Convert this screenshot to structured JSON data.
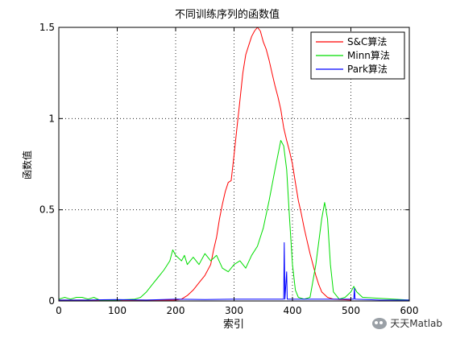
{
  "chart_data": {
    "type": "line",
    "title": "不同训练序列的函数值",
    "xlabel": "索引",
    "ylabel": "函数值",
    "xlim": [
      0,
      600
    ],
    "ylim": [
      0,
      1.5
    ],
    "xticks": [
      0,
      100,
      200,
      300,
      400,
      500,
      600
    ],
    "yticks": [
      0,
      0.5,
      1,
      1.5
    ],
    "ytick_labels": [
      "0",
      "0.5",
      "1",
      "1.5"
    ],
    "grid": true,
    "legend_position": "top-right",
    "series": [
      {
        "name": "S&C算法",
        "color": "#ff0000",
        "points": [
          [
            0,
            0.005
          ],
          [
            50,
            0.005
          ],
          [
            100,
            0.005
          ],
          [
            150,
            0.005
          ],
          [
            200,
            0.005
          ],
          [
            210,
            0.01
          ],
          [
            220,
            0.03
          ],
          [
            230,
            0.06
          ],
          [
            240,
            0.1
          ],
          [
            250,
            0.14
          ],
          [
            260,
            0.2
          ],
          [
            265,
            0.28
          ],
          [
            270,
            0.35
          ],
          [
            275,
            0.45
          ],
          [
            280,
            0.53
          ],
          [
            285,
            0.6
          ],
          [
            290,
            0.65
          ],
          [
            295,
            0.66
          ],
          [
            300,
            0.8
          ],
          [
            305,
            0.95
          ],
          [
            310,
            1.1
          ],
          [
            315,
            1.25
          ],
          [
            320,
            1.35
          ],
          [
            325,
            1.4
          ],
          [
            330,
            1.45
          ],
          [
            335,
            1.48
          ],
          [
            340,
            1.5
          ],
          [
            345,
            1.48
          ],
          [
            350,
            1.42
          ],
          [
            355,
            1.38
          ],
          [
            360,
            1.32
          ],
          [
            365,
            1.25
          ],
          [
            370,
            1.18
          ],
          [
            375,
            1.12
          ],
          [
            380,
            1.05
          ],
          [
            385,
            0.95
          ],
          [
            390,
            0.88
          ],
          [
            395,
            0.82
          ],
          [
            400,
            0.75
          ],
          [
            405,
            0.65
          ],
          [
            410,
            0.55
          ],
          [
            415,
            0.48
          ],
          [
            420,
            0.4
          ],
          [
            425,
            0.33
          ],
          [
            430,
            0.26
          ],
          [
            435,
            0.2
          ],
          [
            440,
            0.14
          ],
          [
            445,
            0.09
          ],
          [
            450,
            0.05
          ],
          [
            460,
            0.02
          ],
          [
            470,
            0.01
          ],
          [
            500,
            0.005
          ]
        ]
      },
      {
        "name": "Minn算法",
        "color": "#00dd00",
        "points": [
          [
            0,
            0.01
          ],
          [
            10,
            0.02
          ],
          [
            20,
            0.01
          ],
          [
            30,
            0.02
          ],
          [
            40,
            0.02
          ],
          [
            50,
            0.01
          ],
          [
            60,
            0.02
          ],
          [
            70,
            0.005
          ],
          [
            100,
            0.005
          ],
          [
            130,
            0.01
          ],
          [
            140,
            0.02
          ],
          [
            150,
            0.05
          ],
          [
            160,
            0.09
          ],
          [
            170,
            0.13
          ],
          [
            180,
            0.17
          ],
          [
            190,
            0.22
          ],
          [
            195,
            0.28
          ],
          [
            200,
            0.25
          ],
          [
            210,
            0.22
          ],
          [
            215,
            0.25
          ],
          [
            220,
            0.2
          ],
          [
            230,
            0.24
          ],
          [
            240,
            0.2
          ],
          [
            250,
            0.26
          ],
          [
            260,
            0.22
          ],
          [
            270,
            0.25
          ],
          [
            280,
            0.18
          ],
          [
            290,
            0.16
          ],
          [
            300,
            0.2
          ],
          [
            310,
            0.22
          ],
          [
            320,
            0.18
          ],
          [
            330,
            0.25
          ],
          [
            340,
            0.3
          ],
          [
            350,
            0.4
          ],
          [
            360,
            0.55
          ],
          [
            370,
            0.72
          ],
          [
            375,
            0.8
          ],
          [
            380,
            0.88
          ],
          [
            385,
            0.85
          ],
          [
            390,
            0.72
          ],
          [
            395,
            0.45
          ],
          [
            400,
            0.2
          ],
          [
            405,
            0.06
          ],
          [
            410,
            0.02
          ],
          [
            420,
            0.01
          ],
          [
            430,
            0.02
          ],
          [
            440,
            0.2
          ],
          [
            450,
            0.45
          ],
          [
            455,
            0.54
          ],
          [
            460,
            0.45
          ],
          [
            465,
            0.2
          ],
          [
            470,
            0.05
          ],
          [
            480,
            0.01
          ],
          [
            490,
            0.02
          ],
          [
            500,
            0.05
          ],
          [
            505,
            0.08
          ],
          [
            510,
            0.05
          ],
          [
            520,
            0.02
          ],
          [
            600,
            0.005
          ]
        ]
      },
      {
        "name": "Park算法",
        "color": "#0000ff",
        "points": [
          [
            0,
            0.005
          ],
          [
            50,
            0.005
          ],
          [
            100,
            0.008
          ],
          [
            150,
            0.005
          ],
          [
            200,
            0.01
          ],
          [
            250,
            0.008
          ],
          [
            300,
            0.01
          ],
          [
            350,
            0.01
          ],
          [
            385,
            0.01
          ],
          [
            386,
            0.32
          ],
          [
            387,
            0.01
          ],
          [
            390,
            0.16
          ],
          [
            391,
            0.01
          ],
          [
            420,
            0.01
          ],
          [
            450,
            0.01
          ],
          [
            505,
            0.01
          ],
          [
            506,
            0.07
          ],
          [
            507,
            0.01
          ],
          [
            550,
            0.005
          ],
          [
            600,
            0.005
          ]
        ]
      }
    ]
  },
  "watermark": {
    "icon": "wechat-icon",
    "text": "天天Matlab"
  }
}
